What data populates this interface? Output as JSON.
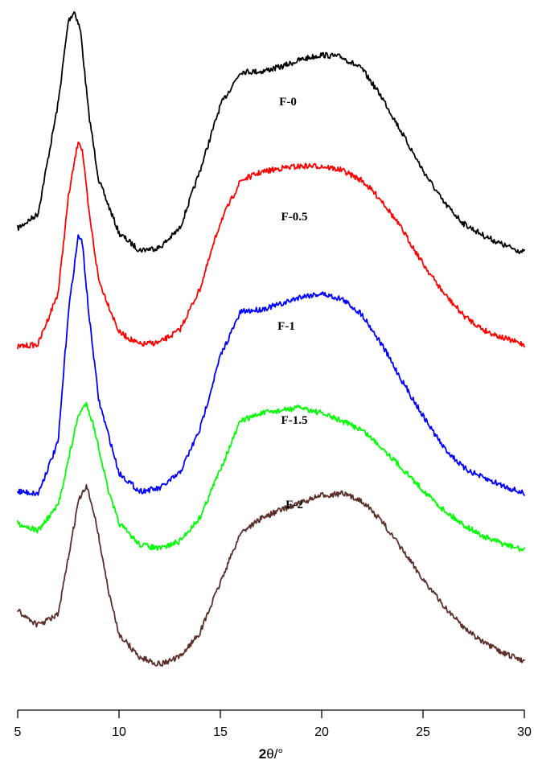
{
  "chart_data": {
    "type": "line",
    "xlabel_bold": "2",
    "xlabel_rest": "θ/°",
    "xlim": [
      5,
      30
    ],
    "xticks": [
      5,
      10,
      15,
      20,
      25,
      30
    ],
    "y_axis_shown": false,
    "grid": false,
    "legend": "none (inline labels)",
    "series": [
      {
        "name": "F-0",
        "color": "#000000",
        "x": [
          5,
          6,
          7,
          7.5,
          7.8,
          8.1,
          8.5,
          9,
          10,
          11,
          12,
          13,
          14,
          15,
          16,
          17,
          18,
          19,
          20,
          21,
          22,
          23,
          24,
          25,
          26,
          27,
          28,
          29,
          30
        ],
        "y": [
          0.1,
          0.16,
          0.62,
          0.96,
          1.0,
          0.92,
          0.58,
          0.3,
          0.08,
          0.01,
          0.02,
          0.1,
          0.34,
          0.61,
          0.75,
          0.75,
          0.77,
          0.8,
          0.82,
          0.81,
          0.76,
          0.64,
          0.49,
          0.34,
          0.21,
          0.12,
          0.07,
          0.03,
          0.0
        ]
      },
      {
        "name": "F-0.5",
        "color": "#ff0000",
        "x": [
          5,
          6,
          7,
          7.5,
          8,
          8.2,
          8.5,
          9,
          10,
          11,
          12,
          13,
          14,
          15,
          16,
          17,
          18,
          19,
          20,
          21,
          22,
          23,
          24,
          25,
          26,
          27,
          28,
          29,
          30
        ],
        "y": [
          0.0,
          0.01,
          0.26,
          0.72,
          1.0,
          0.94,
          0.66,
          0.32,
          0.07,
          0.01,
          0.02,
          0.08,
          0.28,
          0.6,
          0.8,
          0.84,
          0.86,
          0.87,
          0.87,
          0.85,
          0.8,
          0.7,
          0.56,
          0.4,
          0.26,
          0.15,
          0.08,
          0.04,
          0.01
        ]
      },
      {
        "name": "F-1",
        "color": "#0000ff",
        "x": [
          5,
          6,
          7,
          7.5,
          8,
          8.2,
          8.5,
          9,
          10,
          11,
          12,
          13,
          14,
          15,
          16,
          17,
          18,
          19,
          20,
          21,
          22,
          23,
          24,
          25,
          26,
          27,
          28,
          29,
          30
        ],
        "y": [
          0.01,
          0.0,
          0.2,
          0.7,
          1.0,
          0.96,
          0.7,
          0.36,
          0.08,
          0.01,
          0.02,
          0.08,
          0.25,
          0.53,
          0.7,
          0.71,
          0.73,
          0.76,
          0.77,
          0.75,
          0.69,
          0.57,
          0.43,
          0.3,
          0.18,
          0.1,
          0.06,
          0.03,
          0.0
        ]
      },
      {
        "name": "F-1.5",
        "color": "#00ff00",
        "x": [
          5,
          6,
          7,
          7.5,
          8,
          8.4,
          8.8,
          9.5,
          10,
          11,
          12,
          13,
          14,
          15,
          16,
          17,
          18,
          19,
          20,
          21,
          22,
          23,
          24,
          25,
          26,
          27,
          28,
          29,
          30
        ],
        "y": [
          0.2,
          0.15,
          0.32,
          0.62,
          0.92,
          1.0,
          0.82,
          0.4,
          0.2,
          0.06,
          0.03,
          0.08,
          0.24,
          0.56,
          0.88,
          0.93,
          0.95,
          0.97,
          0.93,
          0.88,
          0.82,
          0.7,
          0.56,
          0.42,
          0.29,
          0.19,
          0.11,
          0.06,
          0.02
        ]
      },
      {
        "name": "F-2",
        "color": "#5c3029",
        "x": [
          5,
          6,
          7,
          7.5,
          8,
          8.4,
          8.8,
          9.5,
          10,
          11,
          12,
          13,
          14,
          15,
          16,
          17,
          18,
          19,
          20,
          21,
          22,
          23,
          24,
          25,
          26,
          27,
          28,
          29,
          30
        ],
        "y": [
          0.3,
          0.22,
          0.28,
          0.6,
          0.92,
          1.0,
          0.84,
          0.4,
          0.17,
          0.04,
          0.0,
          0.04,
          0.18,
          0.46,
          0.74,
          0.82,
          0.87,
          0.91,
          0.95,
          0.96,
          0.92,
          0.8,
          0.64,
          0.48,
          0.33,
          0.21,
          0.12,
          0.06,
          0.02
        ]
      }
    ]
  }
}
